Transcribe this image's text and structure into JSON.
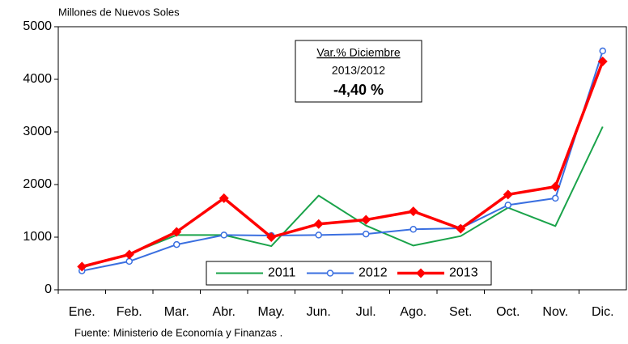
{
  "chart_data": {
    "type": "line",
    "y_axis_label": "Millones de Nuevos Soles",
    "source": "Fuente: Ministerio de Economía y Finanzas .",
    "annotation": {
      "title": "Var.% Diciembre",
      "subtitle": "2013/2012",
      "value": "-4,40 %"
    },
    "categories": [
      "Ene.",
      "Feb.",
      "Mar.",
      "Abr.",
      "May.",
      "Jun.",
      "Jul.",
      "Ago.",
      "Set.",
      "Oct.",
      "Nov.",
      "Dic."
    ],
    "series": [
      {
        "name": "2011",
        "color": "#1aa34a",
        "marker": "none",
        "values": [
          420,
          680,
          1040,
          1040,
          830,
          1790,
          1220,
          840,
          1020,
          1560,
          1210,
          3100
        ]
      },
      {
        "name": "2012",
        "color": "#3a6fe0",
        "marker": "circle",
        "values": [
          360,
          540,
          860,
          1040,
          1030,
          1040,
          1060,
          1150,
          1170,
          1610,
          1740,
          4540
        ]
      },
      {
        "name": "2013",
        "color": "#ff0000",
        "marker": "diamond",
        "values": [
          440,
          670,
          1100,
          1740,
          1000,
          1250,
          1330,
          1490,
          1160,
          1810,
          1960,
          4340
        ]
      }
    ],
    "ylim": [
      0,
      5000
    ],
    "yticks": [
      0,
      1000,
      2000,
      3000,
      4000,
      5000
    ],
    "grid": false,
    "legend": "bottom"
  }
}
